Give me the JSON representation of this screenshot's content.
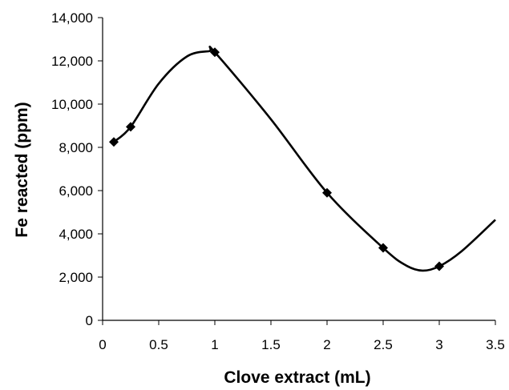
{
  "chart_data": {
    "type": "scatter",
    "smoothed_line": true,
    "title": "",
    "xlabel": "Clove extract (mL)",
    "ylabel": "Fe reacted (ppm)",
    "xlim": [
      0,
      3.5
    ],
    "ylim": [
      0,
      14000
    ],
    "x_ticks": [
      "0",
      "0.5",
      "1",
      "1.5",
      "2",
      "2.5",
      "3",
      "3.5"
    ],
    "y_ticks": [
      "0",
      "2,000",
      "4,000",
      "6,000",
      "8,000",
      "10,000",
      "12,000",
      "14,000"
    ],
    "grid": false,
    "legend": "none",
    "marker": "diamond",
    "series": [
      {
        "x": [
          0.1,
          0.25,
          1,
          2,
          2.5,
          3
        ],
        "y": [
          8250,
          8950,
          12400,
          5900,
          3350,
          2500
        ],
        "color": "#000000"
      }
    ],
    "curve_x": [
      0.1,
      0.25,
      0.5,
      0.75,
      0.95,
      1,
      1.5,
      2,
      2.5,
      2.7,
      2.85,
      3,
      3.2,
      3.5
    ],
    "curve_y": [
      8250,
      8950,
      10950,
      12200,
      12450,
      12400,
      9300,
      5900,
      3350,
      2550,
      2300,
      2500,
      3200,
      4650
    ]
  }
}
